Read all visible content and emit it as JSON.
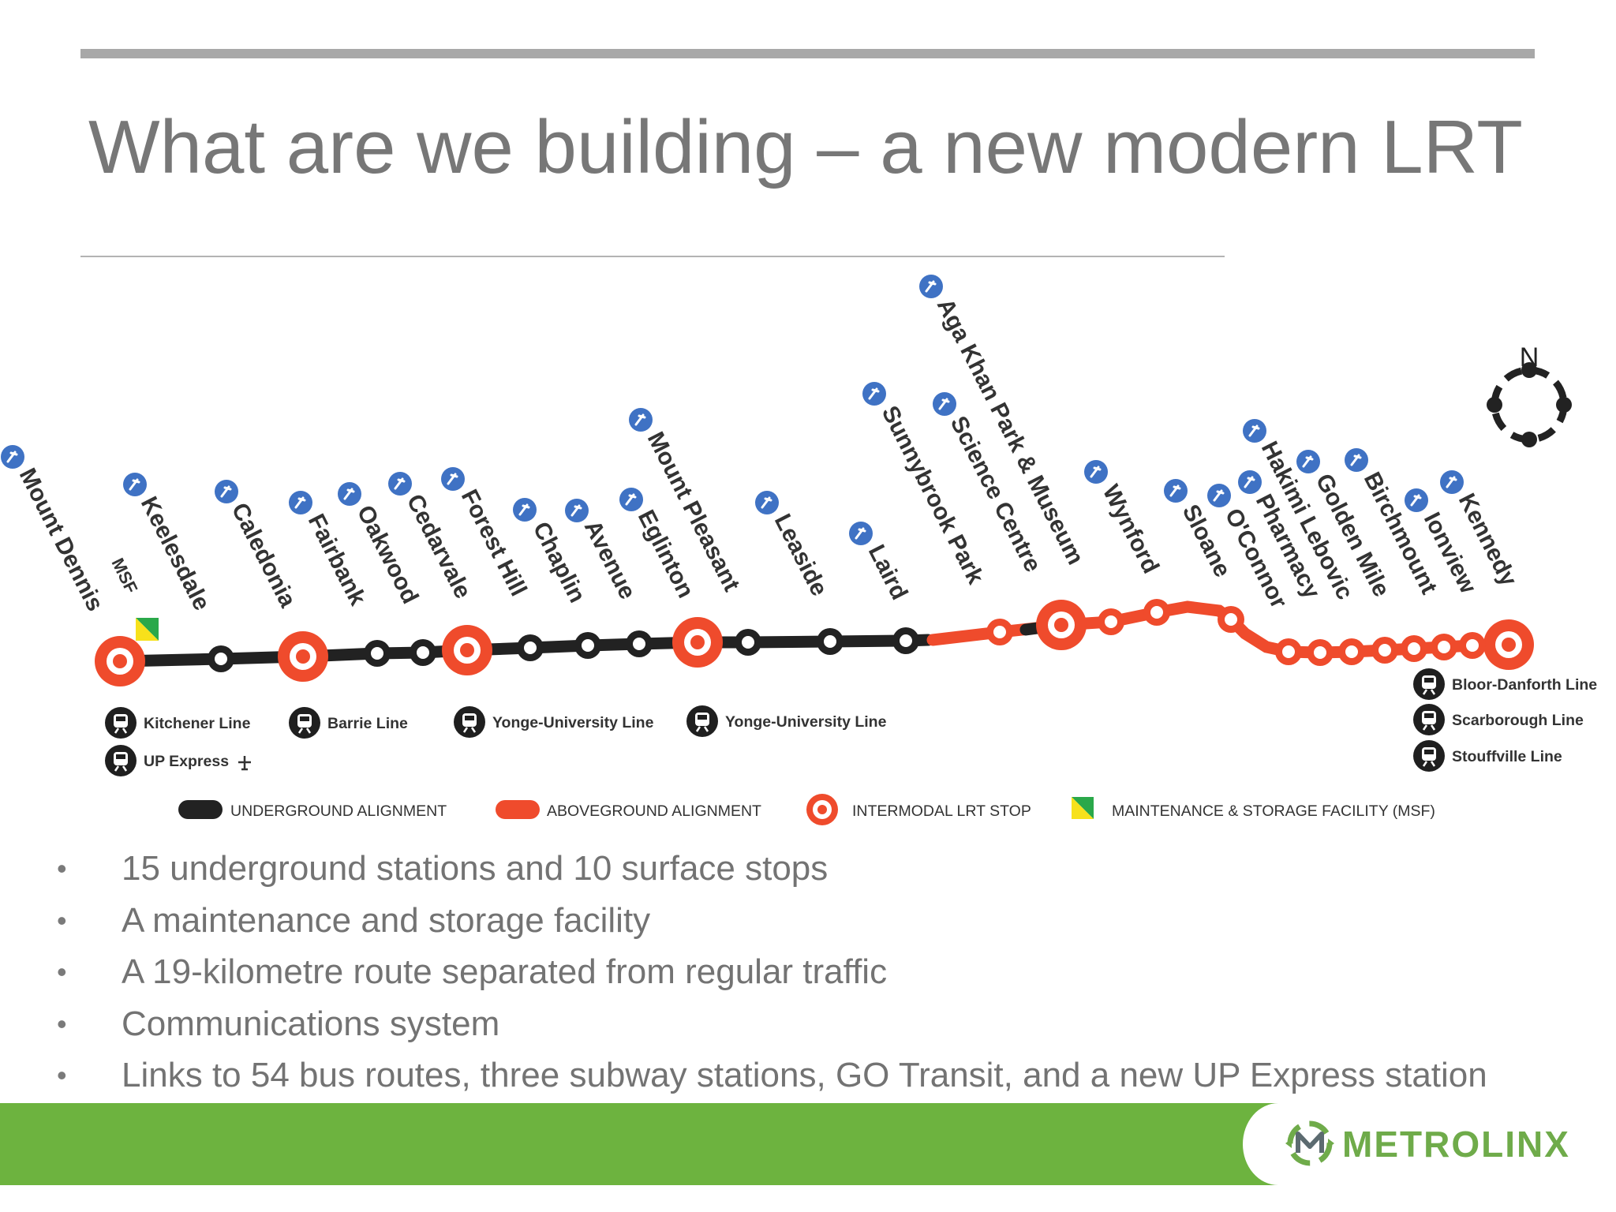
{
  "slide": {
    "title": "What are we building – a new modern LRT",
    "bullets": [
      "15 underground stations and 10 surface stops",
      "A maintenance and storage facility",
      "A 19-kilometre route separated from regular traffic",
      "Communications system",
      "Links to 54 bus routes, three subway stations, GO Transit, and a new UP Express station"
    ]
  },
  "map": {
    "compass_label": "N",
    "msf_label": "MSF",
    "colors": {
      "underground": "#222222",
      "aboveground": "#ef4b2c",
      "bus_icon": "#3f72c4",
      "msf_yellow": "#f7e11b",
      "msf_green": "#2aa84a"
    },
    "stations": [
      {
        "name": "Mount Dennis",
        "kind": "intermodal"
      },
      {
        "name": "Keelesdale",
        "kind": "underground"
      },
      {
        "name": "Caledonia",
        "kind": "intermodal"
      },
      {
        "name": "Fairbank",
        "kind": "underground"
      },
      {
        "name": "Oakwood",
        "kind": "underground"
      },
      {
        "name": "Cedarvale",
        "kind": "intermodal"
      },
      {
        "name": "Forest Hill",
        "kind": "underground"
      },
      {
        "name": "Chaplin",
        "kind": "underground"
      },
      {
        "name": "Avenue",
        "kind": "underground"
      },
      {
        "name": "Eglinton",
        "kind": "intermodal"
      },
      {
        "name": "Mount Pleasant",
        "kind": "underground"
      },
      {
        "name": "Leaside",
        "kind": "underground"
      },
      {
        "name": "Laird",
        "kind": "underground"
      },
      {
        "name": "Sunnybrook Park",
        "kind": "surface"
      },
      {
        "name": "Science Centre",
        "kind": "intermodal"
      },
      {
        "name": "Aga Khan Park & Museum",
        "kind": "surface"
      },
      {
        "name": "Wynford",
        "kind": "surface"
      },
      {
        "name": "Sloane",
        "kind": "surface"
      },
      {
        "name": "O'Connor",
        "kind": "surface"
      },
      {
        "name": "Pharmacy",
        "kind": "surface"
      },
      {
        "name": "Hakimi Lebovic",
        "kind": "surface"
      },
      {
        "name": "Golden Mile",
        "kind": "surface"
      },
      {
        "name": "Birchmount",
        "kind": "surface"
      },
      {
        "name": "Ionview",
        "kind": "surface"
      },
      {
        "name": "Kennedy",
        "kind": "intermodal"
      }
    ],
    "connections": {
      "mount_dennis": [
        "Kitchener Line",
        "UP Express"
      ],
      "caledonia": [
        "Barrie Line"
      ],
      "cedarvale": [
        "Yonge-University Line"
      ],
      "eglinton": [
        "Yonge-University Line"
      ],
      "kennedy": [
        "Bloor-Danforth Line",
        "Scarborough Line",
        "Stouffville Line"
      ]
    },
    "legend": {
      "underground": "UNDERGROUND ALIGNMENT",
      "aboveground": "ABOVEGROUND ALIGNMENT",
      "intermodal": "INTERMODAL LRT STOP",
      "msf": "MAINTENANCE & STORAGE FACILITY (MSF)"
    }
  },
  "footer": {
    "logo_text": "METROLINX"
  }
}
